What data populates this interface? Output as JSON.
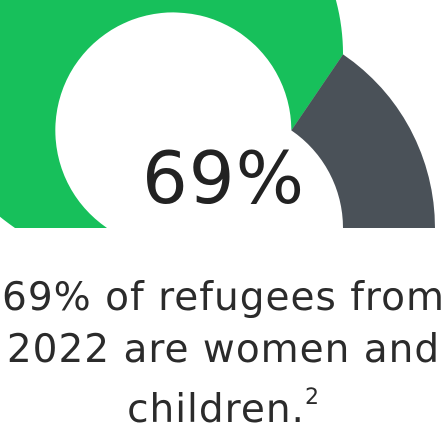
{
  "chart_data": {
    "type": "gauge",
    "value": 69,
    "max": 100,
    "value_label": "69%",
    "caption": "69% of refugees from 2022 are women and children.",
    "footnote": "2",
    "colors": {
      "filled": "#17c05b",
      "remainder": "#4a5158"
    }
  }
}
